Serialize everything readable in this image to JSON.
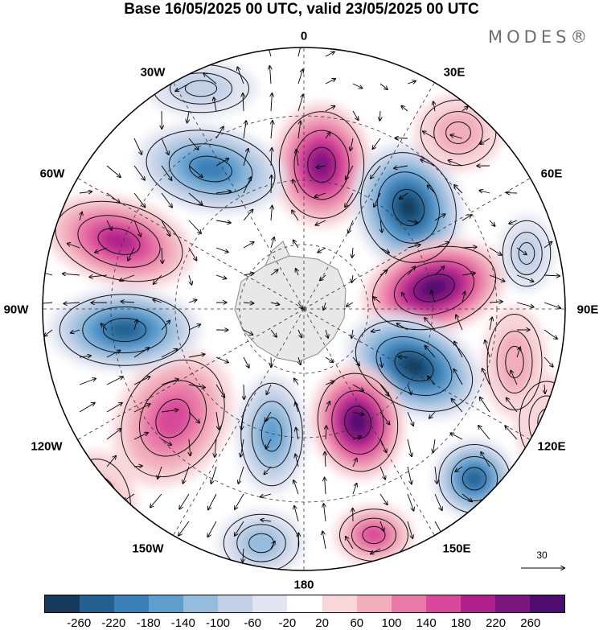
{
  "title": "Base 16/05/2025 00 UTC, valid 23/05/2025 00 UTC",
  "logo": "MODES®",
  "longitude_labels": {
    "lon0": "0",
    "lon30e": "30E",
    "lon60e": "60E",
    "lon90e": "90E",
    "lon120e": "120E",
    "lon150e": "150E",
    "lon180": "180",
    "lon150w": "150W",
    "lon120w": "120W",
    "lon90w": "90W",
    "lon60w": "60W",
    "lon30w": "30W"
  },
  "reference_vector": "30",
  "colorbar": {
    "ticks": [
      "-260",
      "-220",
      "-180",
      "-140",
      "-100",
      "-60",
      "-20",
      "20",
      "60",
      "100",
      "140",
      "180",
      "220",
      "260"
    ],
    "colors": [
      "#163a5c",
      "#24608f",
      "#3a7fb5",
      "#5f9fcf",
      "#93bcdd",
      "#c2d0e6",
      "#e3e6f2",
      "#ffffff",
      "#f8d6da",
      "#f2aebc",
      "#e97aa8",
      "#d9489a",
      "#b0208c",
      "#7b1580",
      "#4e0d6e"
    ]
  },
  "colors": {
    "land": "#e8e8e8",
    "coast": "#8a8a8a",
    "grid": "#333333"
  }
}
